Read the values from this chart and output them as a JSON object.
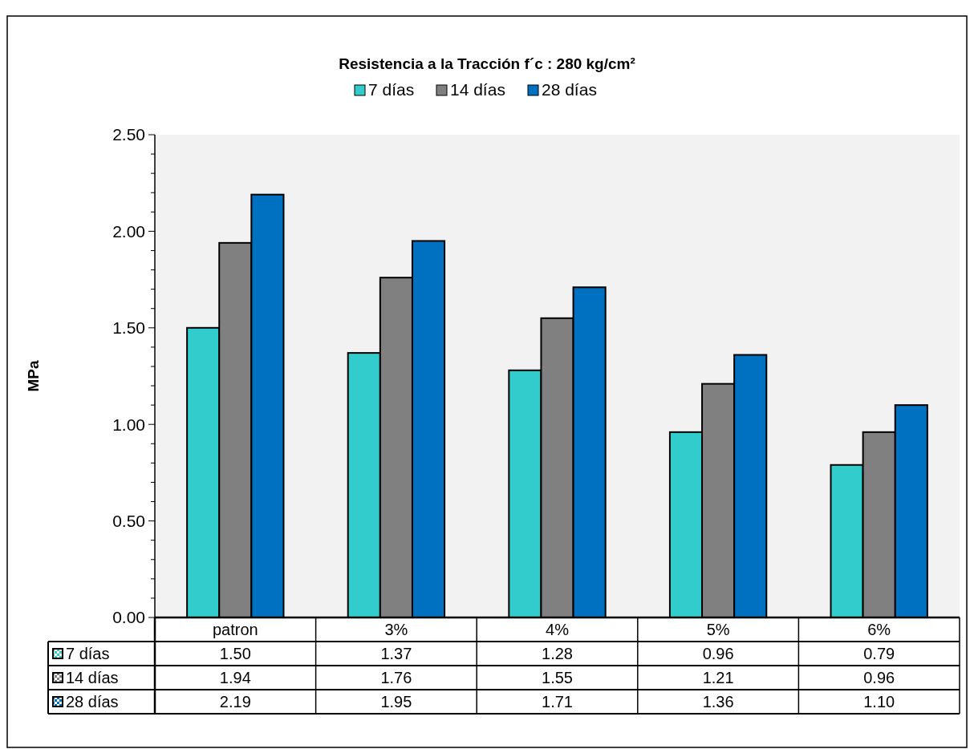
{
  "chart_data": {
    "type": "bar",
    "title": "Resistencia a la Tracción f´c : 280 kg/cm²",
    "ylabel": "MPa",
    "categories": [
      "patron",
      "3%",
      "4%",
      "5%",
      "6%"
    ],
    "series": [
      {
        "name": "7 días",
        "color": "#33cccc",
        "values": [
          1.5,
          1.37,
          1.28,
          0.96,
          0.79
        ],
        "value_labels": [
          "1.50",
          "1.37",
          "1.28",
          "0.96",
          "0.79"
        ]
      },
      {
        "name": "14 días",
        "color": "#808080",
        "values": [
          1.94,
          1.76,
          1.55,
          1.21,
          0.96
        ],
        "value_labels": [
          "1.94",
          "1.76",
          "1.55",
          "1.21",
          "0.96"
        ]
      },
      {
        "name": "28 días",
        "color": "#0070c0",
        "values": [
          2.19,
          1.95,
          1.71,
          1.36,
          1.1
        ],
        "value_labels": [
          "2.19",
          "1.95",
          "1.71",
          "1.36",
          "1.10"
        ]
      }
    ],
    "ylim": [
      0,
      2.5
    ],
    "yticks": [
      {
        "value": 0,
        "label": "0.00"
      },
      {
        "value": 0.1,
        "label": null
      },
      {
        "value": 0.2,
        "label": null
      },
      {
        "value": 0.3,
        "label": null
      },
      {
        "value": 0.4,
        "label": null
      },
      {
        "value": 0.5,
        "label": "0.50"
      },
      {
        "value": 0.6,
        "label": null
      },
      {
        "value": 0.7,
        "label": null
      },
      {
        "value": 0.8,
        "label": null
      },
      {
        "value": 0.9,
        "label": null
      },
      {
        "value": 1,
        "label": "1.00"
      },
      {
        "value": 1.1,
        "label": null
      },
      {
        "value": 1.2,
        "label": null
      },
      {
        "value": 1.3,
        "label": null
      },
      {
        "value": 1.4,
        "label": null
      },
      {
        "value": 1.5,
        "label": "1.50"
      },
      {
        "value": 1.6,
        "label": null
      },
      {
        "value": 1.7,
        "label": null
      },
      {
        "value": 1.8,
        "label": null
      },
      {
        "value": 1.9,
        "label": null
      },
      {
        "value": 2,
        "label": "2.00"
      },
      {
        "value": 2.1,
        "label": null
      },
      {
        "value": 2.2,
        "label": null
      },
      {
        "value": 2.3,
        "label": null
      },
      {
        "value": 2.4,
        "label": null
      },
      {
        "value": 2.5,
        "label": "2.50"
      }
    ],
    "grid": false,
    "legend": "top"
  }
}
